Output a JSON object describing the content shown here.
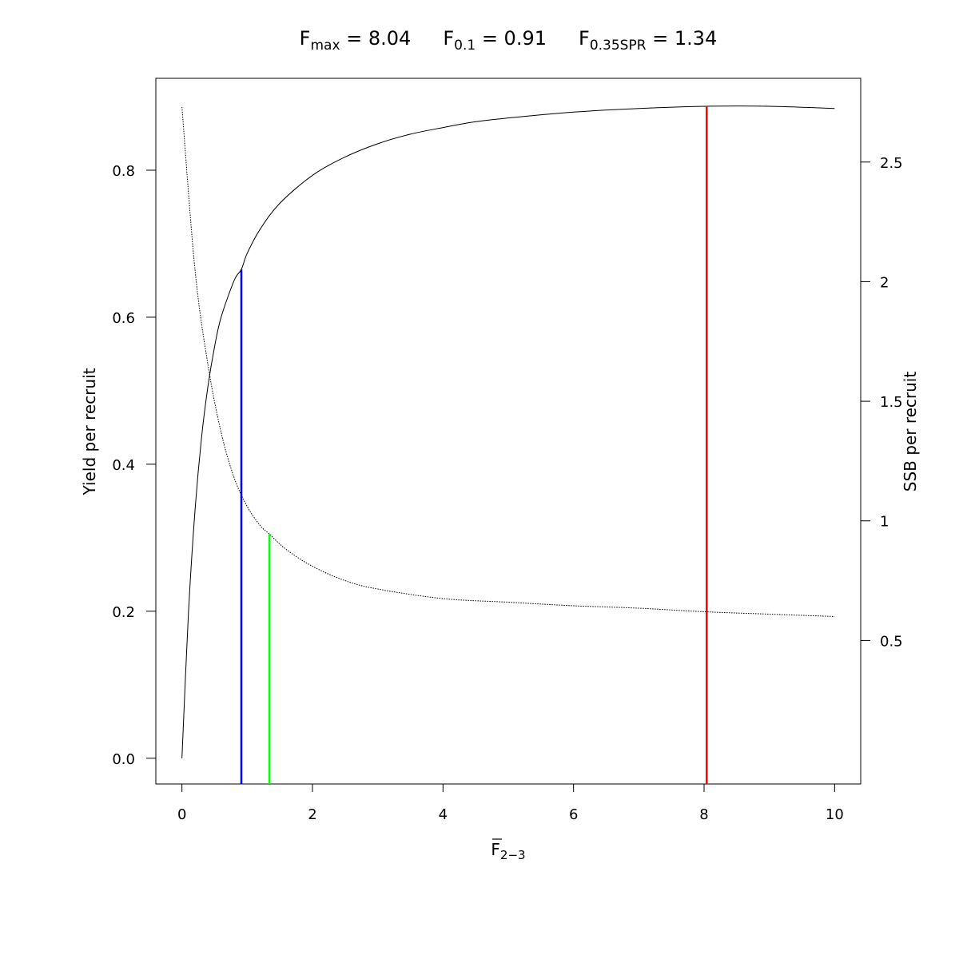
{
  "chart_data": {
    "type": "line",
    "title_parts": [
      {
        "main": "F",
        "sub": "max",
        "rest": " = 8.04"
      },
      {
        "main": "F",
        "sub": "0.1",
        "rest": " = 0.91"
      },
      {
        "main": "F",
        "sub": "0.35SPR",
        "rest": " = 1.34"
      }
    ],
    "xlabel": {
      "main": "F",
      "sub": "2−3",
      "overline": true
    },
    "ylabel_left": "Yield per recruit",
    "ylabel_right": "SSB per recruit",
    "xlim": [
      -0.4,
      10.4
    ],
    "ylim_left": [
      -0.035,
      0.925
    ],
    "ylim_right": [
      -0.1,
      2.85
    ],
    "x_ticks": [
      0,
      2,
      4,
      6,
      8,
      10
    ],
    "x_tick_labels": [
      "0",
      "2",
      "4",
      "6",
      "8",
      "10"
    ],
    "y_left_ticks": [
      0.0,
      0.2,
      0.4,
      0.6,
      0.8
    ],
    "y_left_tick_labels": [
      "0.0",
      "0.2",
      "0.4",
      "0.6",
      "0.8"
    ],
    "y_right_ticks": [
      0.5,
      1,
      1.5,
      2,
      2.5
    ],
    "y_right_tick_labels": [
      "0.5",
      "1",
      "1.5",
      "2",
      "2.5"
    ],
    "series": [
      {
        "axis": "left",
        "line_style": "solid",
        "color": "#000000",
        "x": [
          0,
          0.1,
          0.2,
          0.3,
          0.4,
          0.5,
          0.6,
          0.8,
          0.91,
          1.0,
          1.2,
          1.5,
          2.0,
          2.5,
          3.0,
          3.5,
          4.0,
          4.5,
          5.0,
          6.0,
          7.0,
          8.04,
          9.0,
          10.0
        ],
        "y": [
          0.0,
          0.198,
          0.337,
          0.436,
          0.507,
          0.56,
          0.6,
          0.65,
          0.665,
          0.687,
          0.72,
          0.755,
          0.793,
          0.818,
          0.836,
          0.849,
          0.858,
          0.866,
          0.871,
          0.879,
          0.884,
          0.887,
          0.887,
          0.884
        ]
      },
      {
        "axis": "right",
        "line_style": "dotted",
        "color": "#000000",
        "x": [
          0,
          0.2,
          0.4,
          0.6,
          0.8,
          1.0,
          1.2,
          1.34,
          1.6,
          2.0,
          2.5,
          3.0,
          4.0,
          5.0,
          6.0,
          7.0,
          8.0,
          9.0,
          10.0
        ],
        "y": [
          2.73,
          2.05,
          1.65,
          1.37,
          1.18,
          1.06,
          0.98,
          0.945,
          0.88,
          0.81,
          0.75,
          0.715,
          0.675,
          0.66,
          0.645,
          0.635,
          0.62,
          0.61,
          0.6
        ]
      }
    ],
    "reference_lines": [
      {
        "label": "F0.1",
        "x": 0.91,
        "y_top": 0.665,
        "axis": "left",
        "color": "#0000ff"
      },
      {
        "label": "F0.35SPR",
        "x": 1.34,
        "y_top": 0.945,
        "axis": "right",
        "color": "#00ff00"
      },
      {
        "label": "Fmax",
        "x": 8.04,
        "y_top": 0.887,
        "axis": "left",
        "color": "#ff0000"
      }
    ]
  }
}
